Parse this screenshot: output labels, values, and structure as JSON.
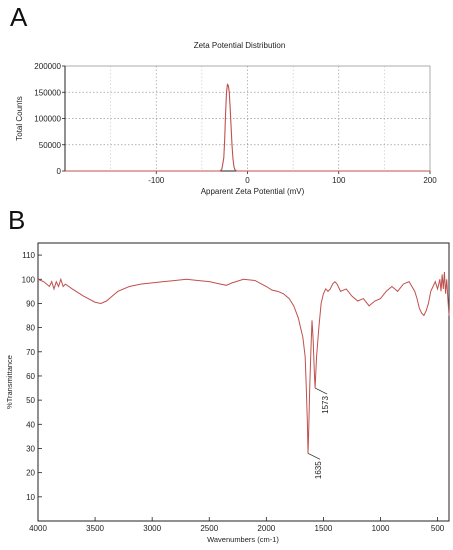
{
  "panels": {
    "a_letter": "A",
    "b_letter": "B"
  },
  "chart_data": [
    {
      "type": "line",
      "title": "Zeta Potential Distribution",
      "xlabel": "Apparent Zeta Potential (mV)",
      "ylabel": "Total Counts",
      "xlim": [
        -200,
        200
      ],
      "ylim": [
        0,
        200000
      ],
      "xticks": [
        -100,
        0,
        100,
        200
      ],
      "yticks": [
        0,
        50000,
        100000,
        150000,
        200000
      ],
      "ytick_labels": [
        "0",
        "50000",
        "100000",
        "150000",
        "200000"
      ],
      "grid": true,
      "color": "#c0504d",
      "x": [
        -200,
        -30,
        -28,
        -26,
        -25,
        -24,
        -23,
        -22,
        -21,
        -20,
        -19,
        -18,
        -17,
        -16,
        -15,
        -14,
        -12,
        200
      ],
      "y": [
        0,
        0,
        4000,
        25000,
        60000,
        110000,
        150000,
        165000,
        163000,
        150000,
        120000,
        85000,
        50000,
        25000,
        10000,
        3000,
        0,
        0
      ]
    },
    {
      "type": "line",
      "title": "",
      "xlabel": "Wavenumbers (cm-1)",
      "ylabel": "%Transmittance",
      "xlim": [
        4000,
        400
      ],
      "ylim": [
        0,
        115
      ],
      "xticks": [
        4000,
        3500,
        3000,
        2500,
        2000,
        1500,
        1000,
        500
      ],
      "yticks": [
        10,
        20,
        30,
        40,
        50,
        60,
        70,
        80,
        90,
        100,
        110
      ],
      "grid": false,
      "color": "#c0504d",
      "annotations": [
        {
          "label": "1635",
          "x": 1635,
          "y": 28
        },
        {
          "label": "1573",
          "x": 1573,
          "y": 55
        }
      ],
      "x": [
        4000,
        3950,
        3900,
        3880,
        3860,
        3840,
        3820,
        3800,
        3780,
        3760,
        3700,
        3600,
        3500,
        3450,
        3400,
        3350,
        3300,
        3200,
        3100,
        3000,
        2900,
        2800,
        2700,
        2600,
        2500,
        2400,
        2350,
        2300,
        2200,
        2100,
        2000,
        1950,
        1900,
        1850,
        1800,
        1760,
        1720,
        1700,
        1680,
        1660,
        1650,
        1640,
        1635,
        1630,
        1620,
        1610,
        1600,
        1590,
        1580,
        1573,
        1560,
        1540,
        1520,
        1500,
        1480,
        1460,
        1440,
        1420,
        1400,
        1380,
        1350,
        1300,
        1250,
        1200,
        1150,
        1100,
        1050,
        1000,
        950,
        900,
        850,
        800,
        750,
        700,
        680,
        660,
        640,
        620,
        600,
        580,
        560,
        540,
        520,
        500,
        480,
        470,
        460,
        450,
        440,
        430,
        420,
        410,
        400
      ],
      "y": [
        100,
        99,
        97,
        99,
        96,
        99,
        97,
        100,
        97,
        98,
        96,
        93,
        90.5,
        90,
        91,
        93,
        95,
        97,
        98,
        98.5,
        99,
        99.5,
        100,
        99.5,
        99,
        98,
        97.5,
        98.5,
        100,
        99.5,
        97,
        95.5,
        95,
        94,
        92,
        89,
        84,
        80,
        76,
        68,
        55,
        40,
        28,
        35,
        55,
        70,
        83,
        75,
        62,
        55,
        68,
        80,
        90,
        94,
        96,
        95,
        96,
        98,
        99,
        98,
        95,
        96,
        93,
        91,
        92,
        89,
        91,
        92,
        95,
        97,
        95,
        98,
        99,
        95,
        92,
        88,
        86,
        85,
        87,
        90,
        95,
        97,
        99,
        96,
        100,
        95,
        102,
        96,
        103,
        94,
        100,
        92,
        85
      ]
    }
  ]
}
